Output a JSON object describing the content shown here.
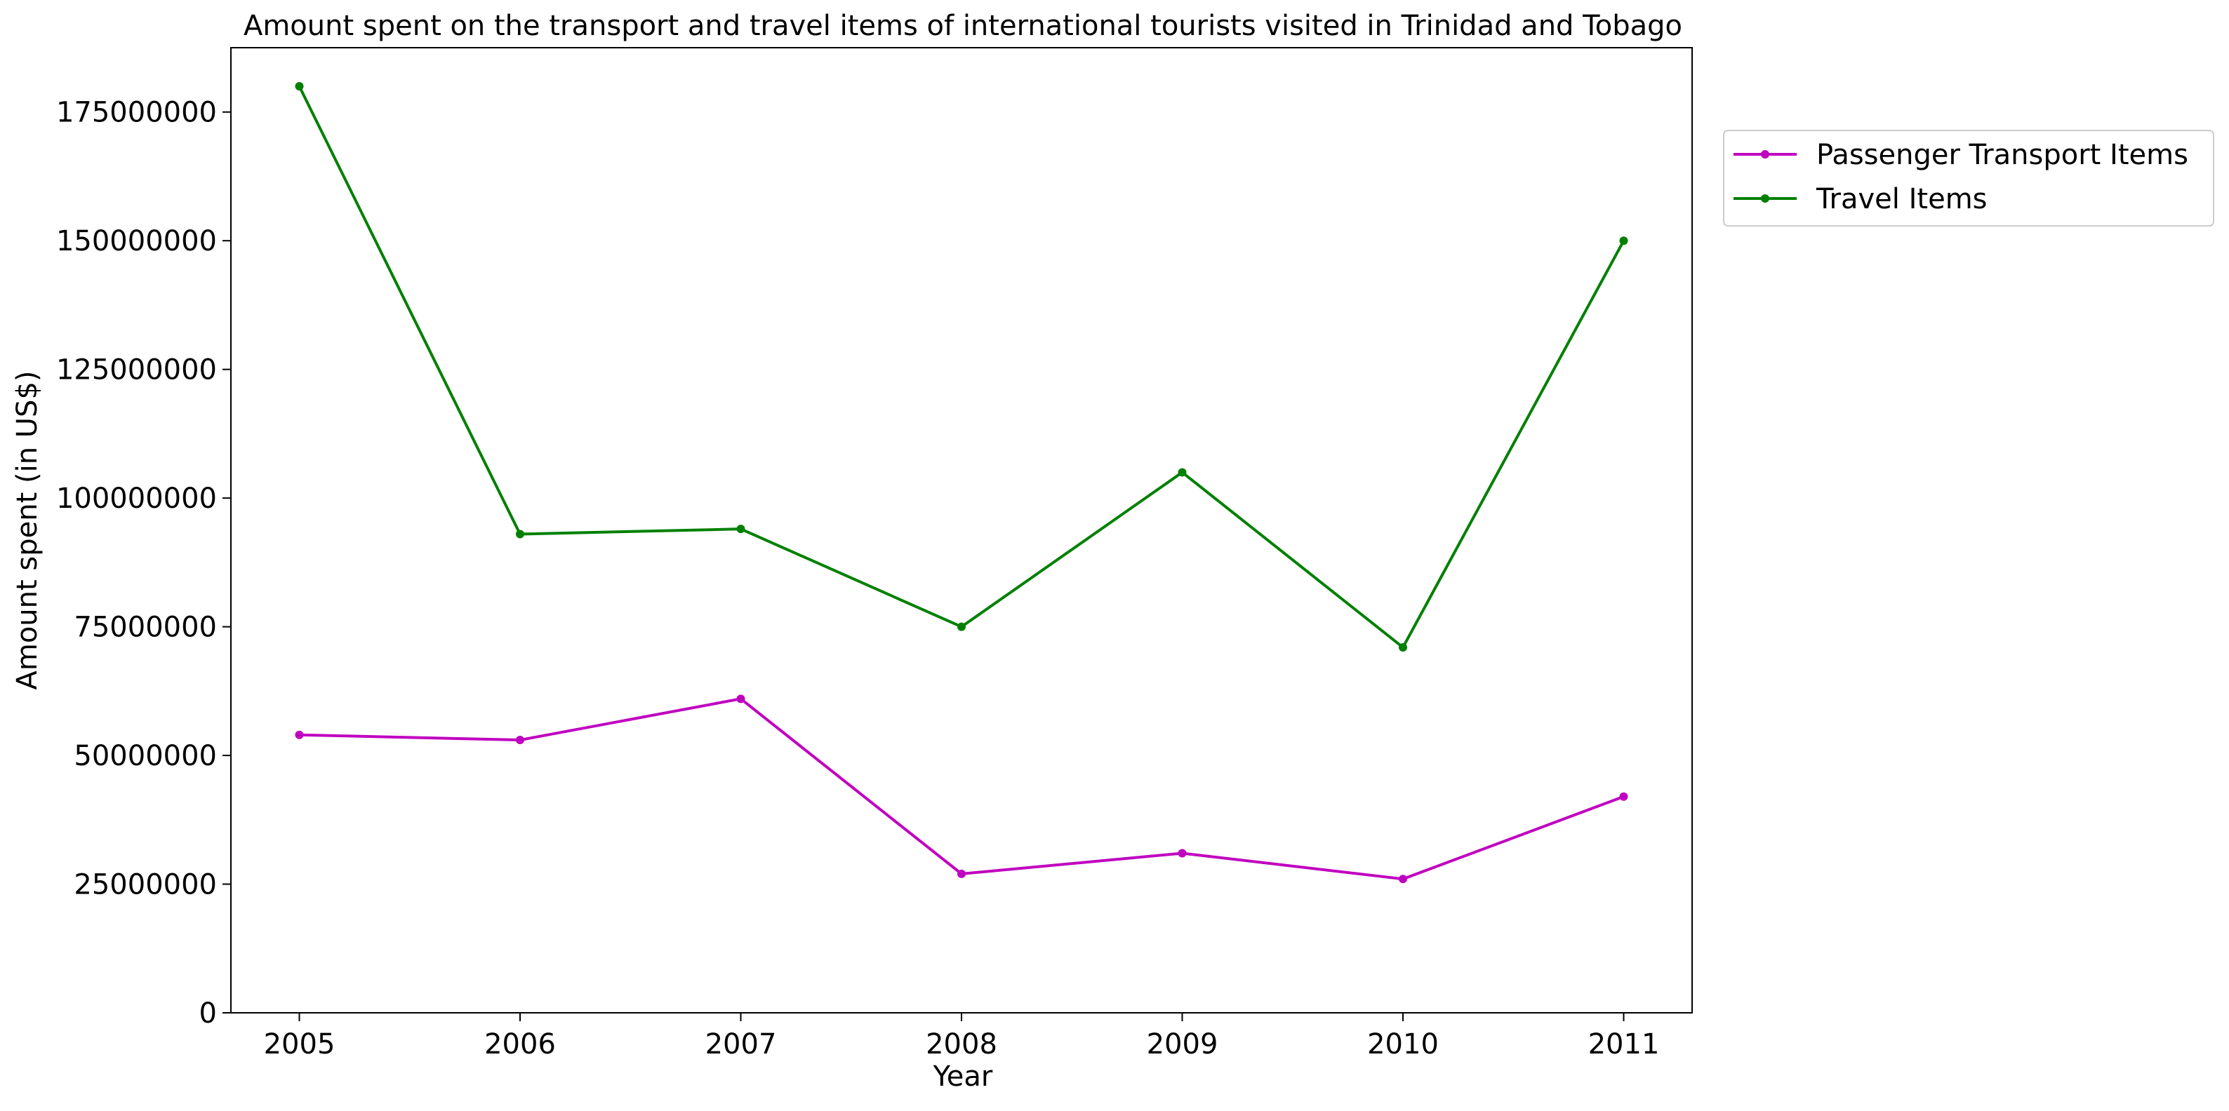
{
  "chart_data": {
    "type": "line",
    "title": "Amount spent on the transport and travel items of international tourists visited in Trinidad and Tobago",
    "xlabel": "Year",
    "ylabel": "Amount spent (in US$)",
    "x": [
      "2005",
      "2006",
      "2007",
      "2008",
      "2009",
      "2010",
      "2011"
    ],
    "xlim": [
      2004.69,
      2011.31
    ],
    "ylim": [
      0,
      187500000
    ],
    "yticks": [
      0,
      25000000,
      50000000,
      75000000,
      100000000,
      125000000,
      150000000,
      175000000
    ],
    "ytick_labels": [
      "0",
      "25000000",
      "50000000",
      "75000000",
      "100000000",
      "125000000",
      "150000000",
      "175000000"
    ],
    "grid": false,
    "legend_position": "outside-top-right",
    "series": [
      {
        "name": "Passenger Transport Items",
        "color": "#c000c0",
        "marker": "point",
        "values": [
          54000000,
          53000000,
          61000000,
          27000000,
          31000000,
          26000000,
          42000000
        ]
      },
      {
        "name": "Travel Items",
        "color": "#008000",
        "marker": "point",
        "values": [
          180000000,
          93000000,
          94000000,
          75000000,
          105000000,
          71000000,
          150000000
        ]
      }
    ]
  }
}
